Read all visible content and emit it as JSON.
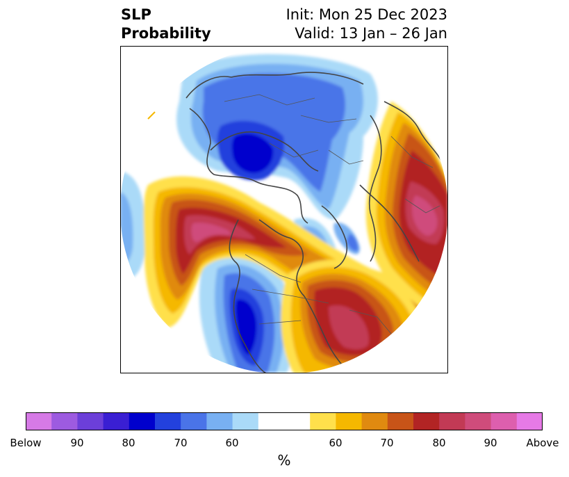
{
  "title": {
    "left_line1": "SLP",
    "left_line2": "Probability",
    "right_line1": "Init: Mon 25 Dec 2023",
    "right_line2": "Valid: 13 Jan – 26 Jan"
  },
  "colorbar": {
    "label": "%",
    "colors": [
      "#d67ae6",
      "#9d5be0",
      "#6c3fd9",
      "#3a1fd3",
      "#0000cd",
      "#2341dd",
      "#4a74e8",
      "#78b0f2",
      "#aadaf8",
      "#ffffff",
      "#ffffff",
      "#ffe04b",
      "#f5b800",
      "#e08a10",
      "#c85418",
      "#b22424",
      "#c23a55",
      "#cf4c7b",
      "#dd5fae",
      "#e67ae6"
    ],
    "ticks": [
      {
        "label": "Below"
      },
      {
        "label": "90"
      },
      {
        "label": "80"
      },
      {
        "label": "70"
      },
      {
        "label": "60"
      },
      {
        "label": "60"
      },
      {
        "label": "70"
      },
      {
        "label": "80"
      },
      {
        "label": "90"
      },
      {
        "label": "Above"
      }
    ]
  },
  "legend_colors": {
    "below_dark": "#0000cd",
    "below_mid": "#4a74e8",
    "below_light": "#aadaf8",
    "above_light": "#ffe04b",
    "above_orange": "#e08a10",
    "above_red": "#b22424",
    "above_pink": "#cf4c7b"
  }
}
